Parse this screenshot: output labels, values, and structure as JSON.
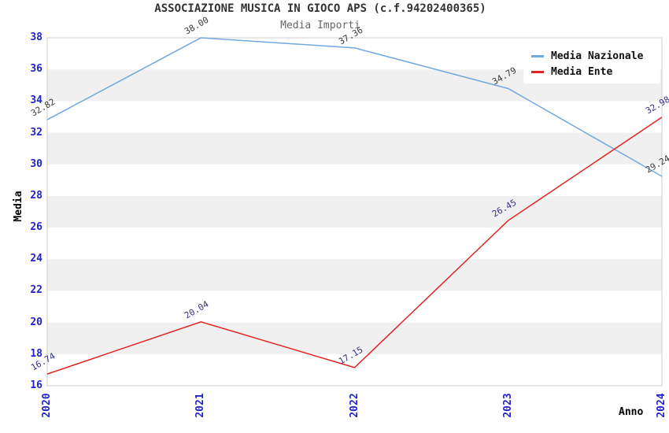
{
  "title": "ASSOCIAZIONE MUSICA IN GIOCO APS (c.f.94202400365)",
  "subtitle": "Media Importi",
  "chart_data": {
    "type": "line",
    "x": [
      "2020",
      "2021",
      "2022",
      "2023",
      "2024"
    ],
    "series": [
      {
        "name": "Media Nazionale",
        "values": [
          32.82,
          38.0,
          37.36,
          34.79,
          29.24
        ],
        "line_color": "#72a8e0",
        "label_color": "#3a3a3a"
      },
      {
        "name": "Media Ente",
        "values": [
          16.74,
          20.04,
          17.15,
          26.45,
          32.98
        ],
        "line_color": "#e02424",
        "label_color": "#333388"
      }
    ],
    "xlabel": "Anno",
    "ylabel": "Media",
    "ylim": [
      16,
      38
    ],
    "ytick_step": 2,
    "grid": "alternating-horizontal-bands",
    "legend_position": "top-right",
    "colors": {
      "band": "#f0f0f0",
      "band_alt": "#ffffff",
      "plot_border": "#cccccc",
      "tick_labels": "#2222cc",
      "title": "#333333",
      "subtitle": "#666666",
      "axis_titles": "#000000"
    }
  }
}
